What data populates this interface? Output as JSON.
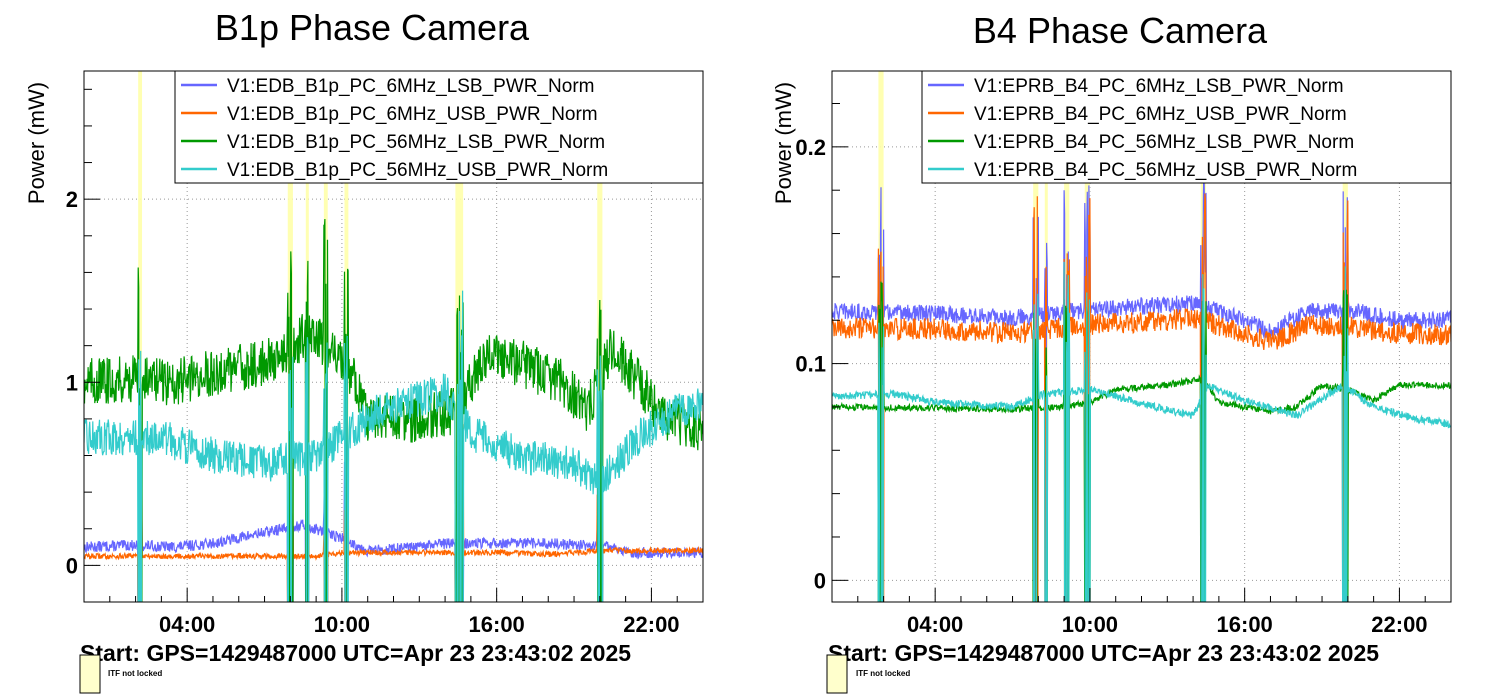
{
  "charts": [
    {
      "title": "B1p Phase Camera",
      "ylabel": "Power (mW)",
      "footer": "Start: GPS=1429487000 UTC=Apr 23 23:43:02 2025",
      "legend_note": "ITF not locked",
      "chart_data": {
        "type": "line",
        "x_unit": "hours",
        "xlim": [
          0,
          24
        ],
        "ylim": [
          -0.2,
          2.7
        ],
        "xticks": [
          {
            "v": 4,
            "label": "04:00"
          },
          {
            "v": 10,
            "label": "10:00"
          },
          {
            "v": 16,
            "label": "16:00"
          },
          {
            "v": 22,
            "label": "22:00"
          }
        ],
        "yticks": [
          {
            "v": 0,
            "label": "0"
          },
          {
            "v": 1,
            "label": "1"
          },
          {
            "v": 2,
            "label": "2"
          }
        ],
        "grid": true,
        "legend_position": "top-right",
        "unlocked_intervals": [
          [
            2.1,
            2.25
          ],
          [
            7.9,
            8.1
          ],
          [
            8.6,
            8.7
          ],
          [
            9.3,
            9.45
          ],
          [
            10.1,
            10.25
          ],
          [
            14.4,
            14.7
          ],
          [
            19.9,
            20.1
          ]
        ],
        "series": [
          {
            "name": "V1:EDB_B1p_PC_6MHz_LSB_PWR_Norm",
            "color": "#6666ff",
            "noise": 0.03,
            "points": [
              [
                0,
                0.1
              ],
              [
                2,
                0.11
              ],
              [
                3.5,
                0.1
              ],
              [
                5,
                0.12
              ],
              [
                7,
                0.18
              ],
              [
                8.5,
                0.22
              ],
              [
                10,
                0.15
              ],
              [
                11,
                0.08
              ],
              [
                13,
                0.1
              ],
              [
                14,
                0.12
              ],
              [
                16,
                0.12
              ],
              [
                18,
                0.12
              ],
              [
                19.5,
                0.11
              ],
              [
                20.5,
                0.1
              ],
              [
                21,
                0.07
              ],
              [
                24,
                0.07
              ]
            ]
          },
          {
            "name": "V1:EDB_B1p_PC_6MHz_USB_PWR_Norm",
            "color": "#ff6600",
            "noise": 0.015,
            "points": [
              [
                0,
                0.05
              ],
              [
                6,
                0.05
              ],
              [
                9,
                0.05
              ],
              [
                10,
                0.07
              ],
              [
                16,
                0.07
              ],
              [
                18,
                0.06
              ],
              [
                20,
                0.08
              ],
              [
                24,
                0.08
              ]
            ]
          },
          {
            "name": "V1:EDB_B1p_PC_56MHz_LSB_PWR_Norm",
            "color": "#009900",
            "noise": 0.13,
            "points": [
              [
                0,
                1.0
              ],
              [
                2,
                1.02
              ],
              [
                3.5,
                1.0
              ],
              [
                5,
                1.05
              ],
              [
                7,
                1.1
              ],
              [
                8.5,
                1.25
              ],
              [
                9.5,
                1.2
              ],
              [
                10.5,
                1.0
              ],
              [
                11,
                0.8
              ],
              [
                13,
                0.8
              ],
              [
                14.5,
                0.85
              ],
              [
                15.5,
                1.15
              ],
              [
                17,
                1.1
              ],
              [
                18.5,
                1.0
              ],
              [
                19.5,
                0.85
              ],
              [
                20.5,
                1.2
              ],
              [
                21.5,
                1.0
              ],
              [
                22.5,
                0.8
              ],
              [
                24,
                0.75
              ]
            ]
          },
          {
            "name": "V1:EDB_B1p_PC_56MHz_USB_PWR_Norm",
            "color": "#33cccc",
            "noise": 0.1,
            "points": [
              [
                0,
                0.7
              ],
              [
                3,
                0.7
              ],
              [
                5,
                0.6
              ],
              [
                7,
                0.55
              ],
              [
                9,
                0.6
              ],
              [
                10,
                0.7
              ],
              [
                11.5,
                0.85
              ],
              [
                14,
                0.95
              ],
              [
                15,
                0.72
              ],
              [
                17,
                0.6
              ],
              [
                19,
                0.55
              ],
              [
                20,
                0.45
              ],
              [
                21.5,
                0.7
              ],
              [
                23,
                0.85
              ],
              [
                24,
                0.88
              ]
            ]
          }
        ]
      }
    },
    {
      "title": "B4 Phase Camera",
      "ylabel": "Power (mW)",
      "footer": "Start: GPS=1429487000 UTC=Apr 23 23:43:02 2025",
      "legend_note": "ITF not locked",
      "chart_data": {
        "type": "line",
        "x_unit": "hours",
        "xlim": [
          0,
          24
        ],
        "ylim": [
          -0.01,
          0.235
        ],
        "xticks": [
          {
            "v": 4,
            "label": "04:00"
          },
          {
            "v": 10,
            "label": "10:00"
          },
          {
            "v": 16,
            "label": "16:00"
          },
          {
            "v": 22,
            "label": "22:00"
          }
        ],
        "yticks": [
          {
            "v": 0,
            "label": "0"
          },
          {
            "v": 0.1,
            "label": "0.1"
          },
          {
            "v": 0.2,
            "label": "0.2"
          }
        ],
        "grid": true,
        "legend_position": "top-right",
        "unlocked_intervals": [
          [
            1.8,
            2.0
          ],
          [
            7.8,
            8.0
          ],
          [
            8.25,
            8.35
          ],
          [
            9.0,
            9.2
          ],
          [
            9.8,
            10.0
          ],
          [
            14.3,
            14.5
          ],
          [
            19.8,
            20.0
          ]
        ],
        "series": [
          {
            "name": "V1:EPRB_B4_PC_6MHz_LSB_PWR_Norm",
            "color": "#6666ff",
            "noise": 0.004,
            "points": [
              [
                0,
                0.124
              ],
              [
                4,
                0.123
              ],
              [
                7,
                0.121
              ],
              [
                10,
                0.125
              ],
              [
                13,
                0.127
              ],
              [
                14,
                0.128
              ],
              [
                16,
                0.12
              ],
              [
                17,
                0.115
              ],
              [
                18.5,
                0.124
              ],
              [
                20,
                0.125
              ],
              [
                22,
                0.12
              ],
              [
                24,
                0.12
              ]
            ]
          },
          {
            "name": "V1:EPRB_B4_PC_6MHz_USB_PWR_Norm",
            "color": "#ff6600",
            "noise": 0.005,
            "points": [
              [
                0,
                0.116
              ],
              [
                4,
                0.116
              ],
              [
                7,
                0.114
              ],
              [
                10,
                0.118
              ],
              [
                13,
                0.12
              ],
              [
                14,
                0.121
              ],
              [
                16,
                0.114
              ],
              [
                17,
                0.11
              ],
              [
                18.5,
                0.118
              ],
              [
                20,
                0.117
              ],
              [
                22,
                0.114
              ],
              [
                24,
                0.113
              ]
            ]
          },
          {
            "name": "V1:EPRB_B4_PC_56MHz_LSB_PWR_Norm",
            "color": "#009900",
            "noise": 0.0015,
            "points": [
              [
                0,
                0.08
              ],
              [
                7,
                0.079
              ],
              [
                9,
                0.08
              ],
              [
                10,
                0.082
              ],
              [
                11,
                0.088
              ],
              [
                13,
                0.09
              ],
              [
                14.4,
                0.093
              ],
              [
                15,
                0.082
              ],
              [
                17,
                0.078
              ],
              [
                18,
                0.08
              ],
              [
                19,
                0.09
              ],
              [
                20,
                0.088
              ],
              [
                21,
                0.083
              ],
              [
                22,
                0.09
              ],
              [
                24,
                0.09
              ]
            ]
          },
          {
            "name": "V1:EPRB_B4_PC_56MHz_USB_PWR_Norm",
            "color": "#33cccc",
            "noise": 0.0018,
            "points": [
              [
                0,
                0.085
              ],
              [
                2.5,
                0.086
              ],
              [
                4,
                0.082
              ],
              [
                7,
                0.08
              ],
              [
                8.2,
                0.086
              ],
              [
                10,
                0.088
              ],
              [
                11,
                0.085
              ],
              [
                12.5,
                0.08
              ],
              [
                14,
                0.076
              ],
              [
                14.6,
                0.09
              ],
              [
                16,
                0.083
              ],
              [
                18,
                0.076
              ],
              [
                19.8,
                0.09
              ],
              [
                21,
                0.08
              ],
              [
                22.5,
                0.075
              ],
              [
                24,
                0.072
              ]
            ]
          }
        ]
      }
    }
  ]
}
